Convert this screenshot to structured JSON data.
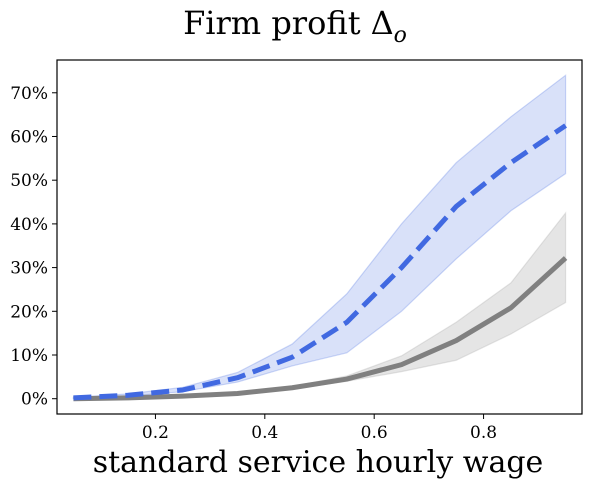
{
  "chart_data": {
    "type": "line",
    "title": "Firm profit",
    "title_math": "Δ",
    "title_subscript": "o",
    "xlabel": "standard service hourly wage",
    "ylabel": "",
    "xlim": [
      0.02,
      0.98
    ],
    "ylim": [
      -0.035,
      0.775
    ],
    "xticks": [
      0.2,
      0.4,
      0.6,
      0.8
    ],
    "xtick_labels": [
      "0.2",
      "0.4",
      "0.6",
      "0.8"
    ],
    "yticks": [
      0,
      0.1,
      0.2,
      0.3,
      0.4,
      0.5,
      0.6,
      0.7
    ],
    "ytick_labels": [
      "0%",
      "10%",
      "20%",
      "30%",
      "40%",
      "50%",
      "60%",
      "70%"
    ],
    "grid": false,
    "x": [
      0.05,
      0.15,
      0.25,
      0.35,
      0.45,
      0.55,
      0.65,
      0.75,
      0.85,
      0.95
    ],
    "series": [
      {
        "color": "#4169e1",
        "band_color": "#4169e1",
        "style": "dashed",
        "values": [
          0.002,
          0.008,
          0.02,
          0.048,
          0.095,
          0.175,
          0.3,
          0.44,
          0.54,
          0.625
        ],
        "lower": [
          0.001,
          0.006,
          0.016,
          0.038,
          0.075,
          0.105,
          0.2,
          0.32,
          0.43,
          0.515
        ],
        "upper": [
          0.003,
          0.011,
          0.026,
          0.06,
          0.125,
          0.24,
          0.4,
          0.54,
          0.645,
          0.74
        ]
      },
      {
        "color": "#808080",
        "band_color": "#a9a9a9",
        "style": "solid",
        "values": [
          0.0,
          0.002,
          0.006,
          0.012,
          0.025,
          0.045,
          0.078,
          0.133,
          0.208,
          0.322
        ],
        "lower": [
          0.0,
          0.001,
          0.004,
          0.01,
          0.022,
          0.04,
          0.062,
          0.088,
          0.148,
          0.22
        ],
        "upper": [
          0.001,
          0.003,
          0.008,
          0.015,
          0.028,
          0.052,
          0.098,
          0.175,
          0.265,
          0.425
        ]
      }
    ]
  }
}
